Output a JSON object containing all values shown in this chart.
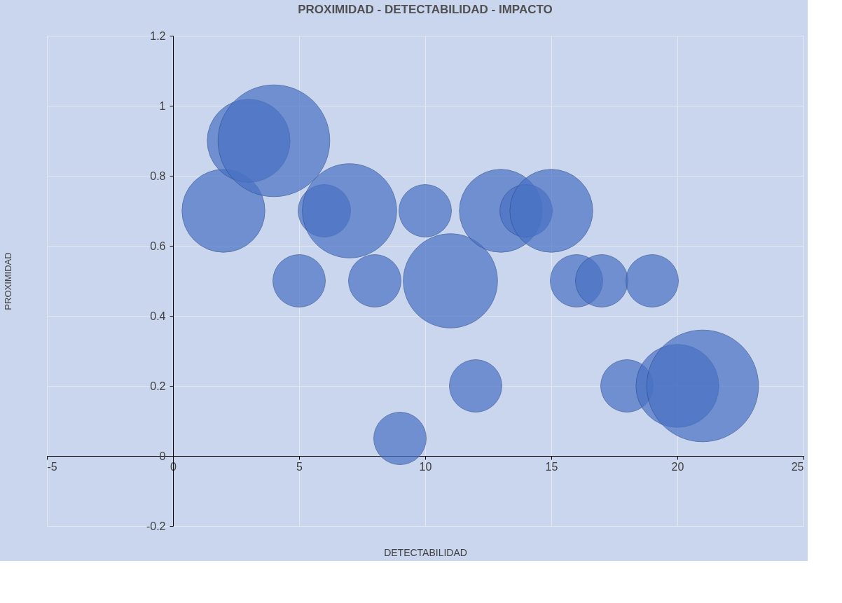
{
  "chart_data": {
    "type": "bubble",
    "title": "PROXIMIDAD - DETECTABILIDAD - IMPACTO",
    "xlabel": "DETECTABILIDAD",
    "ylabel": "PROXIMIDAD",
    "x": [
      2,
      3,
      4,
      5,
      6,
      7,
      8,
      9,
      10,
      11,
      12,
      13,
      14,
      15,
      16,
      17,
      18,
      19,
      20,
      21
    ],
    "values": [
      0.7,
      0.9,
      0.9,
      0.5,
      0.7,
      0.7,
      0.5,
      0.05,
      0.7,
      0.5,
      0.2,
      0.7,
      0.7,
      0.7,
      0.5,
      0.5,
      0.2,
      0.5,
      0.2,
      0.2
    ],
    "sizes": [
      0.55,
      0.55,
      1,
      0.22,
      0.22,
      0.71,
      0.22,
      0.22,
      0.22,
      0.71,
      0.22,
      0.55,
      0.22,
      0.55,
      0.22,
      0.22,
      0.22,
      0.22,
      0.55,
      1
    ],
    "color": "#4a72c4",
    "xlim": [
      -5,
      25
    ],
    "xticks": [
      -5,
      0,
      5,
      10,
      15,
      20,
      25
    ],
    "ylim": [
      -0.2,
      1.2
    ],
    "yticks": [
      -0.2,
      0,
      0.2,
      0.4,
      0.6,
      0.8,
      1,
      1.2
    ],
    "grid": true
  }
}
